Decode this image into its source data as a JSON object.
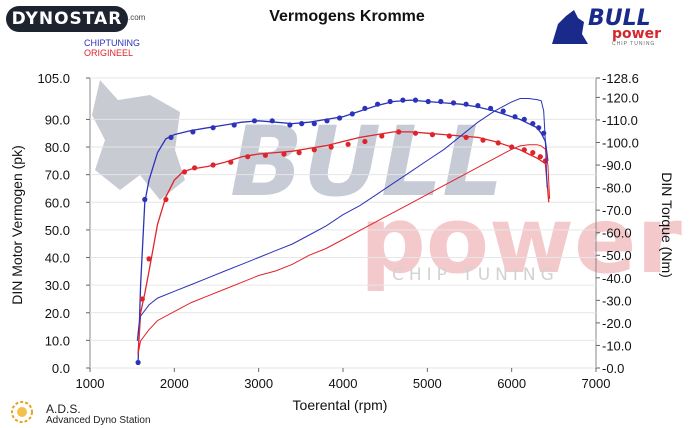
{
  "header": {
    "brand": "DYNOSTAR",
    "brand_suffix": ".com",
    "legend_line1": "CHIPTUNING",
    "legend_line2": "ORIGINEEL",
    "bull_word": "BULL",
    "power_word": "power",
    "chip_word": "CHIP TUNING"
  },
  "watermark": {
    "bull": "BULL",
    "power": "power",
    "chip": "CHIP TUNING"
  },
  "footer": {
    "ads_title": "A.D.S.",
    "ads_subtitle": "Advanced Dyno Station"
  },
  "colors": {
    "chiptuning": "#2b33b8",
    "origineel": "#e0242b"
  },
  "chart_data": {
    "type": "line",
    "title": "Vermogens Kromme",
    "xlabel": "Toerental (rpm)",
    "ylabel": "DIN Motor Vermogen (pk)",
    "y2label": "DIN Torque (Nm)",
    "xlim": [
      1000,
      7000
    ],
    "ylim": [
      0,
      105
    ],
    "y2lim": [
      0,
      128.6
    ],
    "xticks": [
      "1000",
      "2000",
      "3000",
      "4000",
      "5000",
      "6000",
      "7000"
    ],
    "yticks": [
      "0.0",
      "10.0",
      "20.0",
      "30.0",
      "40.0",
      "50.0",
      "60.0",
      "70.0",
      "80.0",
      "90.0",
      "105.0"
    ],
    "y2ticks": [
      "0.0",
      "10.0",
      "20.0",
      "30.0",
      "40.0",
      "50.0",
      "60.0",
      "70.0",
      "80.0",
      "90.0",
      "100.0",
      "110.0",
      "120.0",
      "128.6"
    ],
    "series": [
      {
        "name": "CHIPTUNING",
        "kind": "power",
        "axis": "left",
        "color": "#2b33b8",
        "markers": true,
        "x": [
          1570,
          1600,
          1650,
          1700,
          1800,
          1900,
          2000,
          2200,
          2400,
          2600,
          2800,
          3000,
          3200,
          3400,
          3600,
          3800,
          4000,
          4200,
          4400,
          4600,
          4800,
          5000,
          5200,
          5400,
          5600,
          5800,
          6000,
          6100,
          6200,
          6300,
          6350,
          6400,
          6430
        ],
        "y": [
          2,
          30,
          60,
          68,
          78,
          83,
          84.5,
          86,
          87,
          88,
          89,
          89.5,
          89,
          88.5,
          89,
          90,
          91,
          93,
          95,
          96.5,
          97,
          96.5,
          96,
          95.5,
          94.5,
          93,
          91,
          90,
          88.5,
          87,
          85,
          82,
          75
        ],
        "marker_x": [
          1570,
          1650,
          1960,
          2220,
          2460,
          2710,
          2950,
          3160,
          3370,
          3510,
          3660,
          3810,
          3960,
          4110,
          4260,
          4410,
          4560,
          4710,
          4860,
          5010,
          5160,
          5310,
          5460,
          5600,
          5750,
          5900,
          6040,
          6150,
          6250,
          6320,
          6380
        ],
        "marker_y": [
          2,
          61,
          83.5,
          85.5,
          87,
          88,
          89.5,
          89.5,
          88,
          88.5,
          88.5,
          89.5,
          90.5,
          92,
          94,
          95.5,
          96.5,
          97,
          97,
          96.5,
          96.5,
          96,
          95.5,
          95,
          94,
          93,
          91,
          90,
          88.5,
          87,
          85
        ]
      },
      {
        "name": "ORIGINEEL",
        "kind": "power",
        "axis": "left",
        "color": "#e0242b",
        "markers": true,
        "x": [
          1570,
          1600,
          1650,
          1700,
          1800,
          1900,
          2000,
          2100,
          2200,
          2400,
          2600,
          2800,
          3000,
          3200,
          3400,
          3600,
          3800,
          4000,
          4200,
          4400,
          4600,
          4800,
          5000,
          5200,
          5400,
          5600,
          5800,
          6000,
          6100,
          6200,
          6300,
          6400,
          6440
        ],
        "y": [
          5,
          20,
          27,
          35,
          52,
          62,
          68,
          71,
          72,
          73,
          74.5,
          76.5,
          77.5,
          78,
          78.5,
          79.5,
          80.5,
          82,
          83.5,
          84.5,
          85.5,
          85.5,
          85,
          84.5,
          84,
          83.5,
          82,
          80,
          79,
          77.5,
          76,
          74,
          60
        ],
        "marker_x": [
          1620,
          1700,
          1900,
          2120,
          2240,
          2460,
          2670,
          2870,
          3080,
          3300,
          3480,
          3660,
          3860,
          4060,
          4260,
          4460,
          4660,
          4860,
          5060,
          5260,
          5460,
          5660,
          5840,
          6000,
          6150,
          6250,
          6340,
          6400
        ],
        "marker_y": [
          25,
          39.5,
          61,
          71,
          72.5,
          73.5,
          74.5,
          76.5,
          77,
          77.5,
          78,
          79,
          80,
          81,
          82,
          84,
          85.5,
          85,
          84.5,
          84,
          83.5,
          82.5,
          81.5,
          80,
          79,
          78,
          76.5,
          75
        ]
      },
      {
        "name": "CHIPTUNING",
        "kind": "torque",
        "axis": "right",
        "color": "#2b33b8",
        "markers": false,
        "x": [
          1560,
          1580,
          1600,
          1700,
          1800,
          2000,
          2200,
          2400,
          2600,
          2800,
          3000,
          3200,
          3400,
          3600,
          3800,
          4000,
          4200,
          4400,
          4600,
          4800,
          5000,
          5200,
          5400,
          5600,
          5800,
          6000,
          6100,
          6200,
          6300,
          6350,
          6380,
          6400,
          6420
        ],
        "y": [
          12,
          19,
          23,
          28,
          31,
          34,
          37,
          40,
          43,
          46,
          49,
          52,
          55,
          59,
          63,
          68,
          72,
          77,
          82,
          87,
          92,
          97,
          103,
          109,
          114,
          118,
          119.5,
          119.5,
          119,
          118.5,
          114,
          100,
          80
        ]
      },
      {
        "name": "ORIGINEEL",
        "kind": "torque",
        "axis": "right",
        "color": "#e0242b",
        "markers": false,
        "x": [
          1580,
          1600,
          1700,
          1800,
          2000,
          2200,
          2400,
          2600,
          2800,
          3000,
          3200,
          3400,
          3600,
          3800,
          4000,
          4200,
          4400,
          4600,
          4800,
          5000,
          5200,
          5400,
          5600,
          5800,
          6000,
          6100,
          6200,
          6300,
          6350,
          6400,
          6430,
          6450
        ],
        "y": [
          8,
          12,
          17,
          21,
          25,
          29,
          32,
          35,
          38,
          41,
          43,
          46,
          50,
          53,
          57,
          61,
          65,
          69,
          73,
          77,
          81,
          85,
          89,
          93,
          97,
          98.5,
          99,
          99,
          98.5,
          97,
          90,
          75
        ]
      }
    ]
  }
}
